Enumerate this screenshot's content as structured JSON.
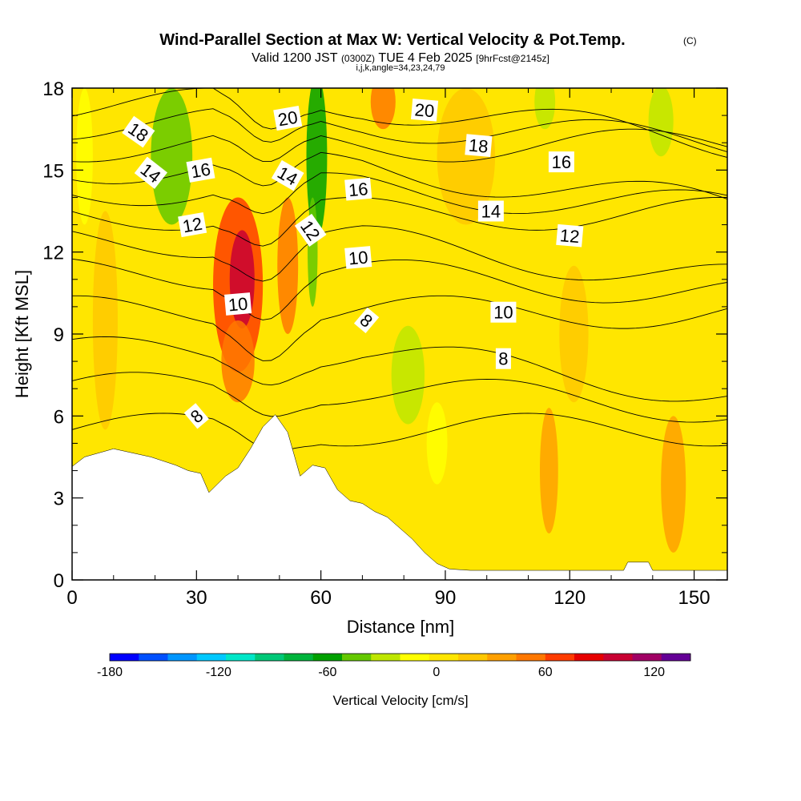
{
  "title": {
    "main": "Wind-Parallel Section at Max W: Vertical Velocity & Pot.Temp.",
    "copyright": "(C)",
    "valid_prefix": "Valid 1200 JST",
    "valid_utc": "(0300Z)",
    "valid_date": "TUE 4 Feb 2025",
    "forecast": "[9hrFcst@2145z]",
    "indices": "i,j,k,angle=34,23,24,79"
  },
  "chart_data": {
    "type": "heatmap",
    "xlabel": "Distance [nm]",
    "ylabel": "Height [Kft MSL]",
    "xlim": [
      0,
      158
    ],
    "ylim": [
      0,
      18
    ],
    "x_ticks": [
      0,
      30,
      60,
      90,
      120,
      150
    ],
    "y_ticks": [
      0,
      3,
      6,
      9,
      12,
      15,
      18
    ],
    "colorbar": {
      "title": "Vertical Velocity [cm/s]",
      "ticks": [
        "-180",
        "-120",
        "-60",
        "0",
        "60",
        "120"
      ],
      "tick_values": [
        -180,
        -120,
        -60,
        0,
        60,
        120
      ],
      "range": [
        -180,
        140
      ],
      "colors": [
        "#0000ff",
        "#0050ff",
        "#0096ff",
        "#00c8ff",
        "#00e6c8",
        "#00c878",
        "#00b43c",
        "#00a000",
        "#64c800",
        "#bee600",
        "#ffff00",
        "#ffe600",
        "#ffc800",
        "#ffa000",
        "#ff7800",
        "#ff3c00",
        "#e60000",
        "#c80032",
        "#a00064",
        "#640096"
      ]
    },
    "contour_field": "Potential Temperature",
    "contour_labels": [
      {
        "text": "18",
        "x": 16,
        "y": 16.4,
        "angle": 35
      },
      {
        "text": "14",
        "x": 19,
        "y": 14.9,
        "angle": 38
      },
      {
        "text": "16",
        "x": 31,
        "y": 15.0,
        "angle": -10
      },
      {
        "text": "12",
        "x": 29,
        "y": 13.0,
        "angle": -10
      },
      {
        "text": "20",
        "x": 52,
        "y": 16.9,
        "angle": -10
      },
      {
        "text": "14",
        "x": 52,
        "y": 14.8,
        "angle": 30
      },
      {
        "text": "12",
        "x": 57.5,
        "y": 12.8,
        "angle": 55
      },
      {
        "text": "16",
        "x": 69,
        "y": 14.3,
        "angle": -5
      },
      {
        "text": "10",
        "x": 40,
        "y": 10.1,
        "angle": -5
      },
      {
        "text": "10",
        "x": 69,
        "y": 11.8,
        "angle": -5
      },
      {
        "text": "8",
        "x": 71,
        "y": 9.5,
        "angle": 40
      },
      {
        "text": "8",
        "x": 30,
        "y": 6.0,
        "angle": -40
      },
      {
        "text": "20",
        "x": 85,
        "y": 17.2,
        "angle": 5
      },
      {
        "text": "18",
        "x": 98,
        "y": 15.9,
        "angle": 5
      },
      {
        "text": "16",
        "x": 118,
        "y": 15.3,
        "angle": 0
      },
      {
        "text": "14",
        "x": 101,
        "y": 13.5,
        "angle": 0
      },
      {
        "text": "12",
        "x": 120,
        "y": 12.6,
        "angle": 5
      },
      {
        "text": "10",
        "x": 104,
        "y": 9.8,
        "angle": 0
      },
      {
        "text": "8",
        "x": 104,
        "y": 8.1,
        "angle": 0
      }
    ],
    "terrain": [
      [
        0,
        4.15
      ],
      [
        3,
        4.5
      ],
      [
        10,
        4.8
      ],
      [
        19,
        4.5
      ],
      [
        25,
        4.2
      ],
      [
        28,
        4.0
      ],
      [
        31,
        3.9
      ],
      [
        33,
        3.2
      ],
      [
        35,
        3.5
      ],
      [
        37,
        3.8
      ],
      [
        40,
        4.1
      ],
      [
        43,
        4.8
      ],
      [
        46,
        5.6
      ],
      [
        49,
        6.05
      ],
      [
        52,
        5.4
      ],
      [
        55,
        3.8
      ],
      [
        58,
        4.2
      ],
      [
        61,
        4.1
      ],
      [
        64,
        3.3
      ],
      [
        67,
        2.9
      ],
      [
        70,
        2.8
      ],
      [
        73,
        2.5
      ],
      [
        76,
        2.3
      ],
      [
        79,
        1.9
      ],
      [
        82,
        1.5
      ],
      [
        85,
        1.0
      ],
      [
        88,
        0.6
      ],
      [
        91,
        0.4
      ],
      [
        96,
        0.35
      ],
      [
        115,
        0.35
      ],
      [
        133,
        0.35
      ],
      [
        134,
        0.65
      ],
      [
        139,
        0.65
      ],
      [
        140,
        0.35
      ],
      [
        158,
        0.35
      ]
    ],
    "w_features": [
      {
        "x": 40,
        "y": 10.8,
        "rx": 6,
        "ry": 3.2,
        "value": 75
      },
      {
        "x": 41,
        "y": 11.0,
        "rx": 3,
        "ry": 1.8,
        "value": 95
      },
      {
        "x": 52,
        "y": 11.5,
        "rx": 2.5,
        "ry": 2.5,
        "value": 45
      },
      {
        "x": 40,
        "y": 8.0,
        "rx": 4,
        "ry": 1.5,
        "value": 50
      },
      {
        "x": 59,
        "y": 15.5,
        "rx": 2.5,
        "ry": 3,
        "value": -60
      },
      {
        "x": 58,
        "y": 12.0,
        "rx": 1.2,
        "ry": 2,
        "value": -40
      },
      {
        "x": 24,
        "y": 15.5,
        "rx": 5,
        "ry": 2.5,
        "value": -45
      },
      {
        "x": 142,
        "y": 16.8,
        "rx": 3,
        "ry": 1.3,
        "value": -35
      },
      {
        "x": 114,
        "y": 17.5,
        "rx": 2.5,
        "ry": 1.0,
        "value": -25
      },
      {
        "x": 3,
        "y": 15.5,
        "rx": 2.0,
        "ry": 2.5,
        "value": -20
      },
      {
        "x": 81,
        "y": 7.5,
        "rx": 4,
        "ry": 1.8,
        "value": -25
      },
      {
        "x": 88,
        "y": 5.0,
        "rx": 2.5,
        "ry": 1.5,
        "value": -20
      },
      {
        "x": 75,
        "y": 17.5,
        "rx": 3,
        "ry": 1.0,
        "value": 55
      },
      {
        "x": 115,
        "y": 4.0,
        "rx": 2.2,
        "ry": 2.3,
        "value": 35
      },
      {
        "x": 145,
        "y": 3.5,
        "rx": 3,
        "ry": 2.5,
        "value": 40
      },
      {
        "x": 121,
        "y": 9.0,
        "rx": 3.5,
        "ry": 2.5,
        "value": 25
      },
      {
        "x": 8,
        "y": 9.5,
        "rx": 3,
        "ry": 4,
        "value": 20
      },
      {
        "x": 95,
        "y": 15.5,
        "rx": 7,
        "ry": 2.5,
        "value": 20
      }
    ]
  }
}
